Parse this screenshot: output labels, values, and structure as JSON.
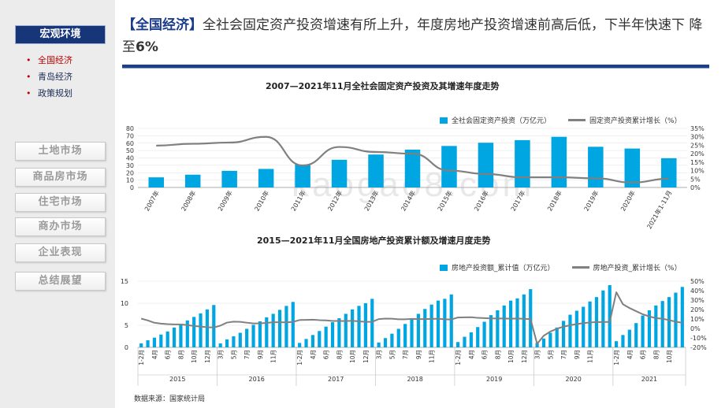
{
  "sidebar": {
    "section_title": "宏观环境",
    "submenu": [
      {
        "label": "全国经济",
        "active": true
      },
      {
        "label": "青岛经济",
        "active": false
      },
      {
        "label": "政策规划",
        "active": false
      }
    ],
    "nav": [
      "土地市场",
      "商品房市场",
      "住宅市场",
      "商办市场",
      "企业表现",
      "总结展望"
    ]
  },
  "header": {
    "tag": "【全国经济】",
    "text_1": "全社会固定资产投资增速有所上升，年度房地产投资增速前高后低，下半年快速下 降至",
    "text_num": "6%"
  },
  "watermark": "kaogao8.com",
  "source": "数据来源：国家统计局",
  "colors": {
    "bar": "#00a6e2",
    "line": "#808080",
    "accent": "#1d3f87"
  },
  "chart_data": [
    {
      "type": "bar",
      "title": "2007—2021年11月全社会固定资产投资及其增速年度走势",
      "categories": [
        "2007年",
        "2008年",
        "2009年",
        "2010年",
        "2011年",
        "2012年",
        "2013年",
        "2014年",
        "2015年",
        "2016年",
        "2017年",
        "2018年",
        "2019年",
        "2020年",
        "2021年1-11月"
      ],
      "series": [
        {
          "name": "全社会固定资产投资（万亿元）",
          "type": "bar",
          "axis": "left",
          "values": [
            13.7,
            17.3,
            22.5,
            25.1,
            31.1,
            37.5,
            44.6,
            51.2,
            56.2,
            60.6,
            64.1,
            68.6,
            55.1,
            52.7,
            39.6
          ]
        },
        {
          "name": "固定资产投资累计增长（%）",
          "type": "line",
          "axis": "right",
          "values": [
            24.8,
            25.9,
            26.6,
            30.0,
            13.0,
            24.0,
            21.0,
            20.0,
            10.0,
            8.0,
            6.0,
            6.0,
            5.4,
            2.9,
            5.2
          ]
        }
      ],
      "ylim_left": [
        0,
        80
      ],
      "yticks_left": [
        0,
        10,
        20,
        30,
        40,
        50,
        60,
        70,
        80
      ],
      "ylim_right": [
        0,
        35
      ],
      "yticks_right": [
        "0%",
        "5%",
        "10%",
        "15%",
        "20%",
        "25%",
        "30%",
        "35%"
      ]
    },
    {
      "type": "bar",
      "title": "2015—2021年11月全国房地产投资累计额及增速月度走势",
      "years": [
        "2015",
        "2016",
        "2017",
        "2018",
        "2019",
        "2020",
        "2021"
      ],
      "month_labels": [
        [
          "1-2月",
          "4月",
          "6月",
          "8月",
          "10月",
          "12月"
        ],
        [
          "3月",
          "5月",
          "7月",
          "9月",
          "11月"
        ],
        [
          "1-2月",
          "4月",
          "6月",
          "8月",
          "10月",
          "12月"
        ],
        [
          "3月",
          "5月",
          "7月",
          "9月",
          "11月"
        ],
        [
          "1-2月",
          "4月",
          "6月",
          "8月",
          "10月",
          "12月"
        ],
        [
          "3月",
          "5月",
          "7月",
          "9月",
          "11月"
        ],
        [
          "1-2月",
          "4月",
          "6月",
          "8月",
          "10月"
        ]
      ],
      "series": [
        {
          "name": "房地产投资额_累计值（万亿元）",
          "type": "bar",
          "axis": "left",
          "values": [
            [
              0.9,
              1.6,
              2.2,
              2.9,
              3.6,
              4.5,
              5.3,
              6.1,
              6.9,
              7.7,
              8.6,
              9.6
            ],
            [
              0.9,
              1.8,
              2.5,
              3.3,
              4.2,
              5.1,
              5.9,
              6.8,
              7.6,
              8.5,
              9.4,
              10.3
            ],
            [
              1.0,
              1.9,
              2.8,
              3.7,
              4.7,
              5.7,
              6.6,
              7.6,
              8.6,
              9.4,
              10.0,
              11.0
            ],
            [
              1.1,
              2.1,
              3.1,
              4.2,
              5.3,
              6.6,
              7.6,
              8.7,
              9.7,
              10.6,
              11.0,
              12.0
            ],
            [
              1.2,
              2.4,
              3.4,
              4.6,
              5.8,
              7.3,
              8.4,
              9.5,
              10.6,
              11.1,
              12.0,
              13.2
            ],
            [
              1.0,
              2.0,
              3.3,
              4.5,
              6.0,
              7.4,
              8.3,
              9.2,
              10.4,
              11.4,
              12.9,
              14.1
            ],
            [
              1.4,
              2.8,
              4.0,
              5.5,
              7.2,
              8.4,
              9.5,
              10.5,
              11.4,
              12.4,
              13.7
            ]
          ]
        },
        {
          "name": "房地产投资_累计增长（%）",
          "type": "line",
          "axis": "right",
          "values": [
            [
              10.4,
              8.5,
              6.0,
              5.1,
              4.6,
              4.3,
              4.3,
              3.5,
              2.6,
              2.0,
              1.3,
              1.0
            ],
            [
              3.0,
              6.2,
              7.2,
              7.0,
              6.1,
              5.3,
              5.4,
              5.8,
              6.6,
              6.6,
              6.5,
              6.9
            ],
            [
              8.9,
              9.1,
              9.3,
              8.8,
              8.5,
              7.9,
              7.9,
              7.8,
              8.1,
              7.5,
              7.0,
              7.0
            ],
            [
              9.9,
              10.4,
              10.3,
              9.7,
              9.7,
              10.1,
              9.9,
              9.9,
              10.1,
              10.3,
              9.7,
              9.5
            ],
            [
              11.6,
              11.8,
              11.9,
              11.2,
              10.9,
              10.6,
              10.5,
              10.5,
              10.3,
              10.5,
              10.2,
              9.9
            ],
            [
              -16.3,
              -7.7,
              -3.3,
              -0.3,
              1.9,
              3.4,
              4.6,
              5.6,
              6.3,
              6.8,
              6.8,
              7.0
            ],
            [
              38.3,
              25.6,
              21.6,
              18.3,
              15.0,
              12.7,
              10.9,
              10.3,
              8.8,
              7.2,
              6.0
            ]
          ]
        }
      ],
      "ylim_left": [
        0,
        15
      ],
      "yticks_left": [
        0,
        5,
        10,
        15
      ],
      "ylim_right": [
        -20,
        50
      ],
      "yticks_right": [
        "-20%",
        "-10%",
        "0%",
        "10%",
        "20%",
        "30%",
        "40%",
        "50%"
      ]
    }
  ]
}
